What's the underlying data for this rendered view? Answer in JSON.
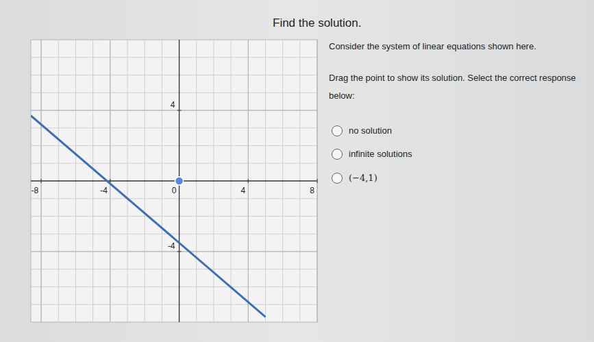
{
  "page": {
    "title": "Find the solution.",
    "prompt": "Consider the system of linear equations shown here.",
    "instruction": "Drag the point to show its solution. Select the correct response below:",
    "options": [
      "no solution",
      "infinite solutions",
      "(−4,1)"
    ]
  },
  "chart_data": {
    "type": "line",
    "xlim": [
      -8.6,
      8
    ],
    "ylim": [
      -8,
      8
    ],
    "xticks": [
      -8,
      -4,
      0,
      4,
      8
    ],
    "yticks": [
      -4,
      4
    ],
    "grid": true,
    "series": [
      {
        "type": "line",
        "color": "#3d6eb0",
        "x": [
          -8.6,
          5
        ],
        "values": [
          3.7,
          -7.7
        ]
      },
      {
        "type": "scatter",
        "color": "#5a86d6",
        "marker": "circle",
        "x": [
          0
        ],
        "values": [
          0
        ]
      }
    ]
  }
}
